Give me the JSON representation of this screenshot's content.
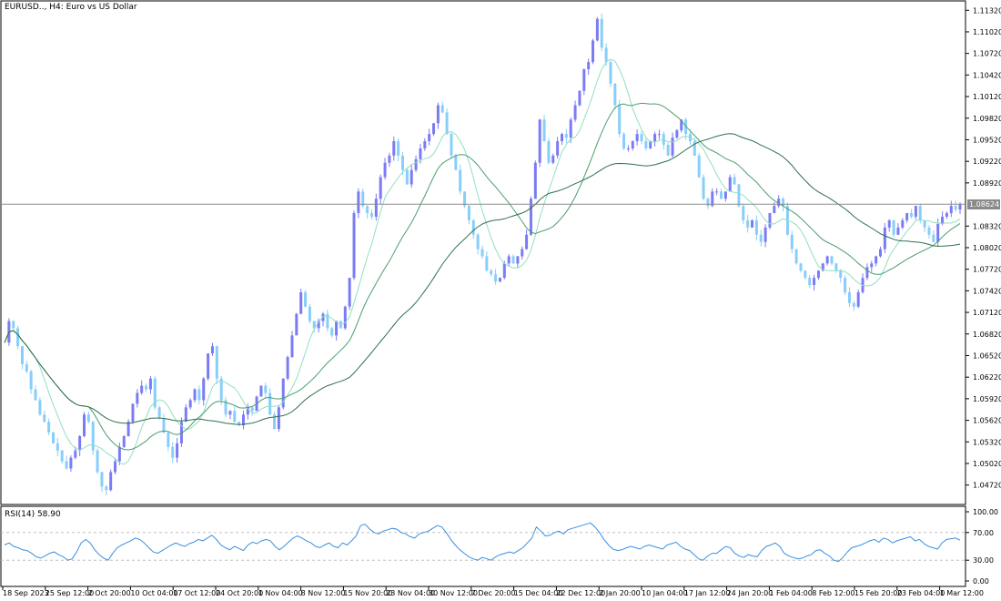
{
  "header": {
    "symbol_label": "EURUSD.., H4:  Euro vs US Dollar"
  },
  "indicator": {
    "label": "RSI(14) 58.90",
    "levels_text": [
      "100.00",
      "70.00",
      "30.00",
      "0.00"
    ]
  },
  "current_price": {
    "text": "1.08624",
    "value": 1.08624
  },
  "colors": {
    "background": "#ffffff",
    "bull_candle": "#7b7bf5",
    "bear_candle": "#87cefa",
    "ma_fast": "#8fe0c0",
    "ma_mid": "#4a9e6e",
    "ma_slow": "#2f6f4e",
    "rsi_line": "#3b8fe0",
    "grid": "#c0c0c0",
    "price_line": "#8c8c8c"
  },
  "chart_data": {
    "type": "candlestick",
    "price_axis_ticks": [
      "1.11320",
      "1.11020",
      "1.10720",
      "1.10420",
      "1.10120",
      "1.09820",
      "1.09520",
      "1.09220",
      "1.08920",
      "1.08320",
      "1.08020",
      "1.07720",
      "1.07420",
      "1.07120",
      "1.06820",
      "1.06520",
      "1.06220",
      "1.05920",
      "1.05620",
      "1.05320",
      "1.05020",
      "1.04720"
    ],
    "time_axis_ticks": [
      "18 Sep 2023",
      "25 Sep 12:00",
      "2 Oct 20:00",
      "10 Oct 04:00",
      "17 Oct 12:00",
      "24 Oct 20:00",
      "1 Nov 04:00",
      "8 Nov 12:00",
      "15 Nov 20:00",
      "23 Nov 04:00",
      "30 Nov 12:00",
      "7 Dec 20:00",
      "15 Dec 04:00",
      "22 Dec 12:00",
      "2 Jan 20:00",
      "10 Jan 04:00",
      "17 Jan 12:00",
      "24 Jan 20:00",
      "1 Feb 04:00",
      "8 Feb 12:00",
      "15 Feb 20:00",
      "23 Feb 04:00",
      "1 Mar 12:00"
    ],
    "ylim": [
      1.0445,
      1.1145
    ],
    "price_path": [
      1.067,
      1.07,
      1.069,
      1.0665,
      1.064,
      1.063,
      1.0605,
      1.059,
      1.057,
      1.056,
      1.0545,
      1.053,
      1.052,
      1.0505,
      1.0495,
      1.051,
      1.052,
      1.054,
      1.057,
      1.056,
      1.052,
      1.049,
      1.047,
      1.0465,
      1.049,
      1.0505,
      1.0525,
      1.054,
      1.056,
      1.0585,
      1.06,
      1.061,
      1.0605,
      1.062,
      1.058,
      1.0565,
      1.0545,
      1.0525,
      1.051,
      1.053,
      1.056,
      1.058,
      1.059,
      1.0605,
      1.059,
      1.062,
      1.0655,
      1.0665,
      1.062,
      1.059,
      1.057,
      1.0575,
      1.056,
      1.0555,
      1.057,
      1.058,
      1.0575,
      1.0595,
      1.061,
      1.06,
      1.057,
      1.055,
      1.058,
      1.062,
      1.065,
      1.068,
      1.071,
      1.074,
      1.072,
      1.07,
      1.069,
      1.07,
      1.071,
      1.069,
      1.068,
      1.07,
      1.069,
      1.072,
      1.076,
      1.085,
      1.088,
      1.086,
      1.085,
      1.0845,
      1.087,
      1.09,
      1.092,
      1.093,
      1.095,
      1.093,
      1.091,
      1.089,
      1.091,
      1.0925,
      1.094,
      1.095,
      1.096,
      1.0975,
      1.1,
      1.099,
      1.096,
      1.093,
      1.091,
      1.088,
      1.086,
      1.084,
      1.082,
      1.08,
      1.079,
      1.077,
      1.0765,
      1.0755,
      1.076,
      1.078,
      1.079,
      1.078,
      1.079,
      1.08,
      1.082,
      1.087,
      1.092,
      1.098,
      1.095,
      1.092,
      1.093,
      1.095,
      1.096,
      1.0955,
      1.098,
      1.1,
      1.102,
      1.105,
      1.106,
      1.109,
      1.112,
      1.108,
      1.106,
      1.103,
      1.1,
      1.096,
      1.094,
      1.094,
      1.095,
      1.096,
      1.095,
      1.094,
      1.095,
      1.096,
      1.096,
      1.0945,
      1.093,
      1.0955,
      1.0965,
      1.098,
      1.096,
      1.095,
      1.093,
      1.09,
      1.087,
      1.086,
      1.088,
      1.088,
      1.087,
      1.088,
      1.09,
      1.089,
      1.086,
      1.084,
      1.083,
      1.084,
      1.082,
      1.081,
      1.083,
      1.085,
      1.086,
      1.087,
      1.086,
      1.082,
      1.08,
      1.078,
      1.077,
      1.076,
      1.075,
      1.076,
      1.077,
      1.078,
      1.079,
      1.078,
      1.077,
      1.076,
      1.074,
      1.0725,
      1.072,
      1.074,
      1.076,
      1.0775,
      1.078,
      1.079,
      1.08,
      1.083,
      1.084,
      1.082,
      1.083,
      1.084,
      1.085,
      1.0845,
      1.086,
      1.084,
      1.083,
      1.082,
      1.081,
      1.0835,
      1.0845,
      1.085,
      1.086,
      1.0855,
      1.0862
    ],
    "rsi_path": [
      52,
      55,
      50,
      48,
      45,
      44,
      40,
      35,
      33,
      36,
      40,
      42,
      38,
      35,
      30,
      32,
      42,
      55,
      60,
      55,
      45,
      38,
      33,
      30,
      40,
      48,
      52,
      55,
      58,
      62,
      60,
      55,
      48,
      42,
      40,
      44,
      48,
      52,
      55,
      52,
      50,
      54,
      56,
      60,
      58,
      62,
      66,
      60,
      52,
      48,
      45,
      50,
      47,
      44,
      52,
      56,
      54,
      58,
      60,
      58,
      50,
      45,
      50,
      56,
      62,
      65,
      62,
      58,
      55,
      50,
      48,
      52,
      55,
      50,
      48,
      55,
      52,
      58,
      65,
      80,
      82,
      75,
      70,
      68,
      72,
      74,
      76,
      75,
      70,
      68,
      64,
      62,
      68,
      70,
      72,
      76,
      80,
      78,
      70,
      60,
      52,
      45,
      40,
      35,
      32,
      30,
      34,
      32,
      30,
      35,
      38,
      40,
      42,
      40,
      44,
      48,
      55,
      62,
      78,
      72,
      65,
      66,
      70,
      72,
      68,
      74,
      76,
      78,
      80,
      82,
      84,
      78,
      70,
      60,
      52,
      46,
      44,
      45,
      48,
      50,
      48,
      46,
      50,
      52,
      50,
      48,
      46,
      52,
      54,
      56,
      50,
      46,
      44,
      38,
      32,
      30,
      36,
      40,
      40,
      45,
      50,
      48,
      40,
      36,
      34,
      38,
      36,
      35,
      44,
      50,
      52,
      55,
      50,
      40,
      36,
      34,
      32,
      33,
      36,
      38,
      44,
      45,
      40,
      36,
      30,
      28,
      34,
      42,
      48,
      50,
      52,
      55,
      58,
      60,
      56,
      62,
      60,
      55,
      58,
      60,
      62,
      64,
      58,
      60,
      54,
      50,
      48,
      46,
      55,
      60,
      61,
      62,
      58.9
    ]
  }
}
